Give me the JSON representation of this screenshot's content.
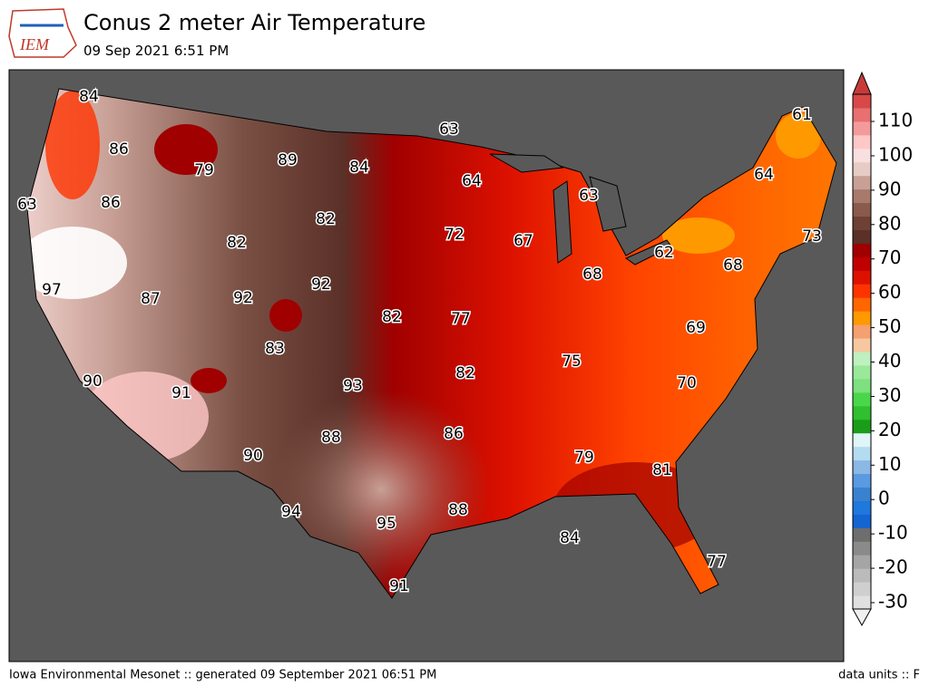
{
  "header": {
    "logo": "IEM",
    "title": "Conus 2 meter Air Temperature",
    "subtitle": "09 Sep 2021 6:51 PM"
  },
  "map": {
    "contour_labels": [
      84,
      86,
      79,
      89,
      84,
      63,
      61,
      64,
      63,
      86,
      64,
      63,
      82,
      82,
      72,
      67,
      62,
      73,
      68,
      97,
      87,
      92,
      92,
      68,
      82,
      77,
      69,
      83,
      75,
      90,
      91,
      93,
      82,
      70,
      88,
      86,
      79,
      81,
      90,
      94,
      88,
      95,
      84,
      77,
      91
    ]
  },
  "colorbar": {
    "ticks": [
      -30,
      -20,
      -10,
      0,
      10,
      20,
      30,
      40,
      50,
      60,
      70,
      80,
      90,
      100,
      110
    ],
    "colors": [
      "#e0e0e0",
      "#cfcfcf",
      "#bbbbbb",
      "#a5a5a5",
      "#8a8a8a",
      "#6e6e6e",
      "#1464d2",
      "#1f78dc",
      "#3a82d0",
      "#5a9ae0",
      "#8cb8e6",
      "#b4dcf0",
      "#dff5f8",
      "#1a9e1a",
      "#2fbf2f",
      "#4ad64a",
      "#7ee07e",
      "#9ae89a",
      "#bff0bf",
      "#f5c8a0",
      "#f5a070",
      "#ff9900",
      "#ff6600",
      "#ff3300",
      "#dd1100",
      "#c00000",
      "#a00000",
      "#5a3028",
      "#6e4036",
      "#8a5a4c",
      "#a87a6c",
      "#c8a096",
      "#e6ccc4",
      "#f8e0e0",
      "#ffc8c8",
      "#f59a9a",
      "#e87070",
      "#d84848"
    ]
  },
  "footer": {
    "left": "Iowa Environmental Mesonet :: generated 09 September 2021 06:51 PM",
    "right": "data units :: F"
  }
}
